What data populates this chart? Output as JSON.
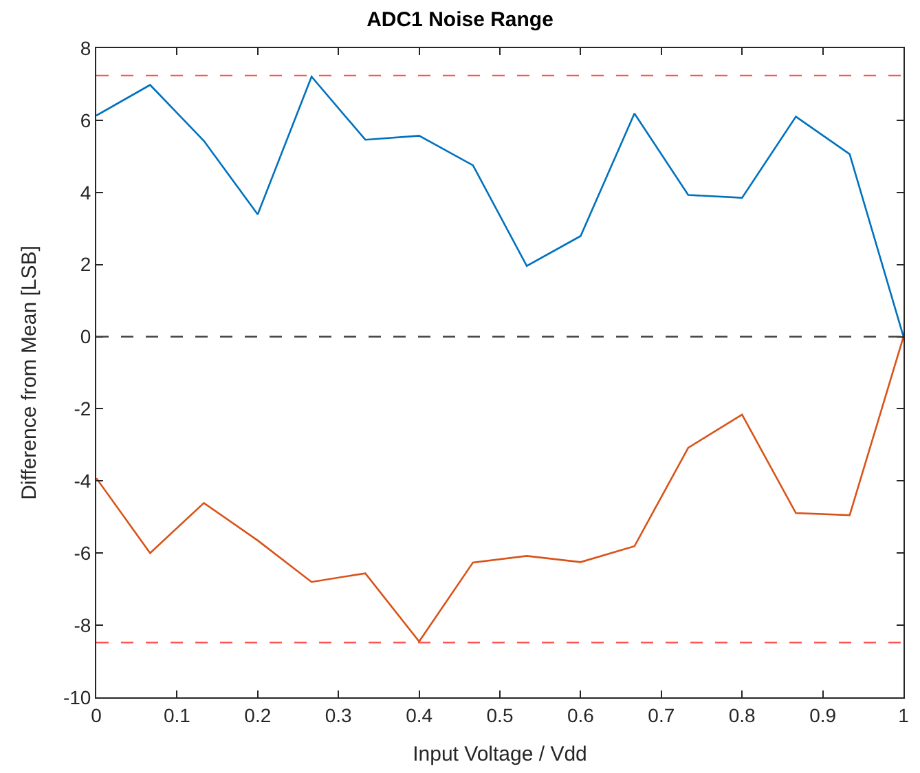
{
  "chart_data": {
    "type": "line",
    "title": "ADC1 Noise Range",
    "xlabel": "Input Voltage / Vdd",
    "ylabel": "Difference from Mean [LSB]",
    "x": [
      0,
      0.0667,
      0.1333,
      0.2,
      0.2667,
      0.3333,
      0.4,
      0.4667,
      0.5333,
      0.6,
      0.6667,
      0.7333,
      0.8,
      0.8667,
      0.9333,
      1
    ],
    "series": [
      {
        "color": "#0072bd",
        "values": [
          6.13,
          6.98,
          5.43,
          3.39,
          7.21,
          5.46,
          5.57,
          4.75,
          1.96,
          2.79,
          6.19,
          3.93,
          3.85,
          6.1,
          5.06,
          0
        ]
      },
      {
        "color": "#d95319",
        "values": [
          -3.92,
          -6.0,
          -4.61,
          -5.65,
          -6.8,
          -6.56,
          -8.45,
          -6.26,
          -6.08,
          -6.25,
          -5.81,
          -3.08,
          -2.16,
          -4.89,
          -4.95,
          0
        ]
      }
    ],
    "ref_lines": [
      {
        "axis": "y",
        "value": 7.24,
        "color": "#ff5555",
        "line_style": "dashed"
      },
      {
        "axis": "y",
        "value": 0,
        "color": "#404040",
        "line_style": "dashed"
      },
      {
        "axis": "y",
        "value": -8.48,
        "color": "#ff5555",
        "line_style": "dashed"
      }
    ],
    "xlim": [
      0,
      1
    ],
    "xticks": [
      0,
      0.1,
      0.2,
      0.3,
      0.4,
      0.5,
      0.6,
      0.7,
      0.8,
      0.9,
      1
    ],
    "ylim": [
      -10,
      8
    ],
    "yticks": [
      -10,
      -8,
      -6,
      -4,
      -2,
      0,
      2,
      4,
      6,
      8
    ],
    "grid": false,
    "marker": "none",
    "line_style": "solid"
  }
}
